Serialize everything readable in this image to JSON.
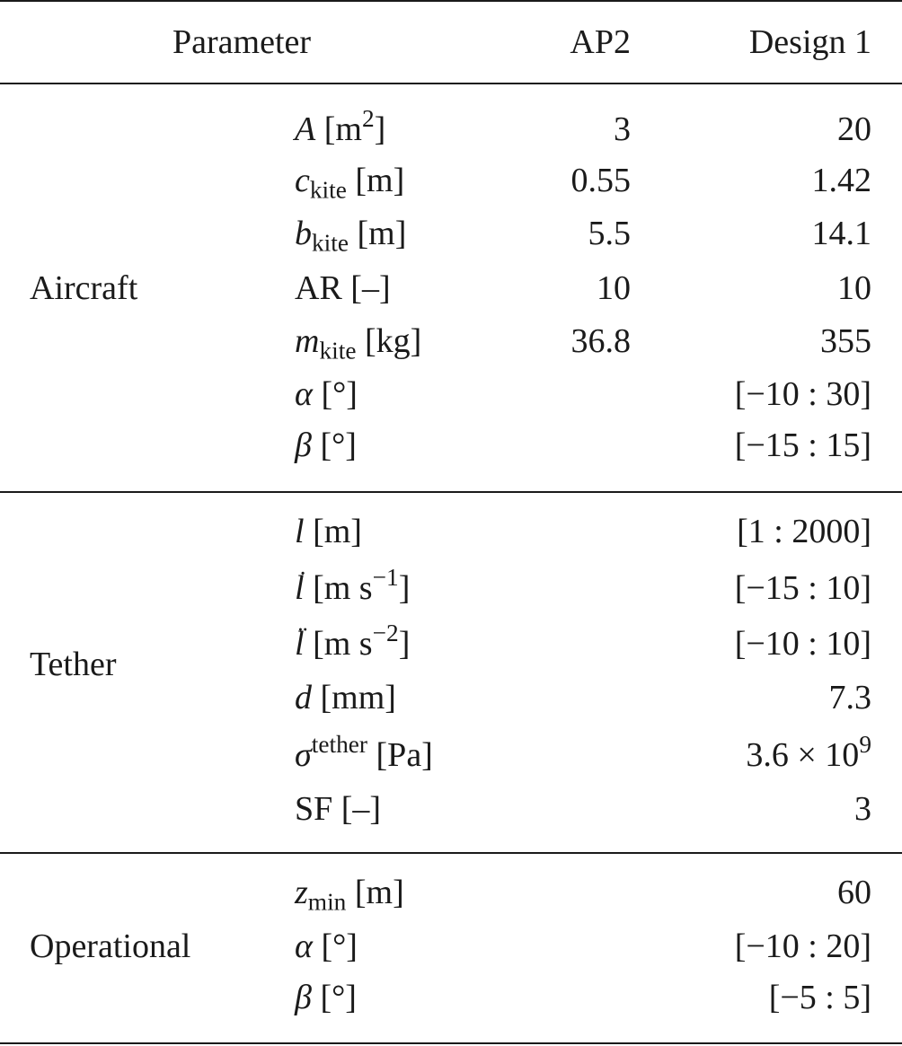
{
  "header": {
    "parameter": "Parameter",
    "ap2": "AP2",
    "design1": "Design 1"
  },
  "groups": {
    "aircraft": "Aircraft",
    "tether": "Tether",
    "operational": "Operational"
  },
  "rows": {
    "area": {
      "sym": "A",
      "unit": " [m",
      "sup": "2",
      "unit_end": "]",
      "ap2": "3",
      "design1": "20"
    },
    "ckite": {
      "sym": "c",
      "sub": "kite",
      "unit": " [m]",
      "ap2": "0.55",
      "design1": "1.42"
    },
    "bkite": {
      "sym": "b",
      "sub": "kite",
      "unit": " [m]",
      "ap2": "5.5",
      "design1": "14.1"
    },
    "ar": {
      "label": "AR [–]",
      "ap2": "10",
      "design1": "10"
    },
    "mkite": {
      "sym": "m",
      "sub": "kite",
      "unit": " [kg]",
      "ap2": "36.8",
      "design1": "355"
    },
    "alpha_a": {
      "sym": "α",
      "unit": " [°]",
      "ap2": "",
      "design1": "[−10 : 30]"
    },
    "beta_a": {
      "sym": "β",
      "unit": " [°]",
      "ap2": "",
      "design1": "[−15 : 15]"
    },
    "l": {
      "sym": "l",
      "unit": " [m]",
      "design1": "[1 : 2000]"
    },
    "ldot": {
      "sym": "l",
      "accent": "˙",
      "unit": " [m s",
      "sup": "−1",
      "unit_end": "]",
      "design1": "[−15 : 10]"
    },
    "lddot": {
      "sym": "l",
      "accent": "¨",
      "unit": " [m s",
      "sup": "−2",
      "unit_end": "]",
      "design1": "[−10 : 10]"
    },
    "d": {
      "sym": "d",
      "unit": " [mm]",
      "design1": "7.3"
    },
    "sigma": {
      "sym": "σ",
      "sup": "tether",
      "unit": " [Pa]",
      "design1_base": "3.6 × 10",
      "design1_sup": "9"
    },
    "sf": {
      "label": "SF [–]",
      "design1": "3"
    },
    "zmin": {
      "sym": "z",
      "sub": "min",
      "unit": " [m]",
      "design1": "60"
    },
    "alpha_o": {
      "sym": "α",
      "unit": " [°]",
      "design1": "[−10 : 20]"
    },
    "beta_o": {
      "sym": "β",
      "unit": " [°]",
      "design1": "[−5 : 5]"
    }
  }
}
